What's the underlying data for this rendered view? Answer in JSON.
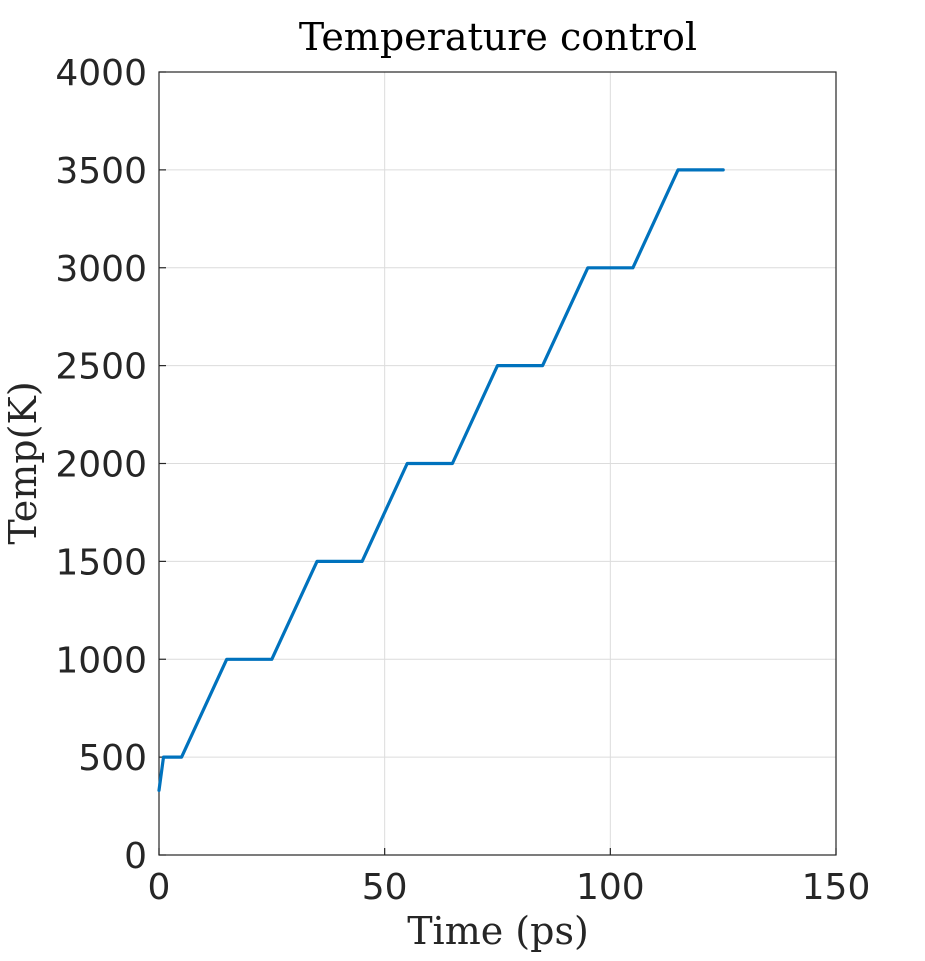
{
  "chart_data": {
    "type": "line",
    "title": "Temperature control",
    "xlabel": "Time (ps)",
    "ylabel": "Temp(K)",
    "xlim": [
      0,
      150
    ],
    "ylim": [
      0,
      4000
    ],
    "xticks": [
      0,
      50,
      100,
      150
    ],
    "yticks": [
      0,
      500,
      1000,
      1500,
      2000,
      2500,
      3000,
      3500,
      4000
    ],
    "grid": true,
    "series": [
      {
        "name": "Temperature",
        "color": "#0072BD",
        "x": [
          0,
          1,
          5,
          15,
          25,
          35,
          45,
          55,
          65,
          75,
          85,
          95,
          105,
          115,
          125
        ],
        "y": [
          330,
          500,
          500,
          1000,
          1000,
          1500,
          1500,
          2000,
          2000,
          2500,
          2500,
          3000,
          3000,
          3500,
          3500
        ]
      }
    ]
  }
}
